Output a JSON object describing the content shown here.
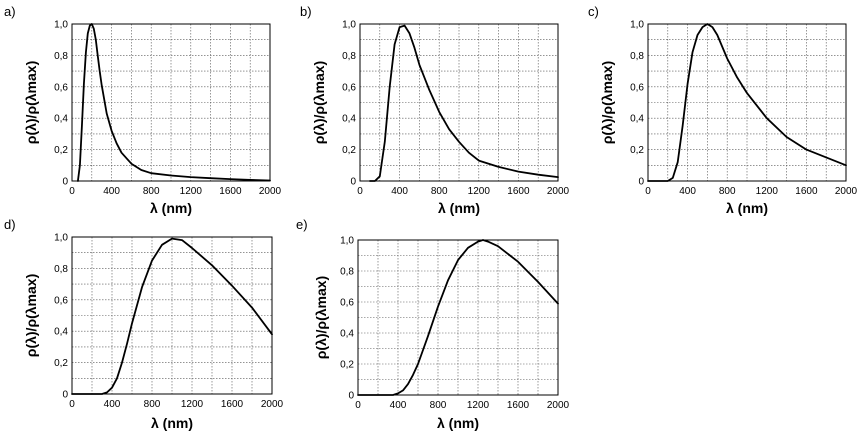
{
  "chart_data": [
    {
      "type": "line",
      "panel_label": "a)",
      "xlabel": "λ (nm)",
      "ylabel": "ρ(λ)/ρ(λmax)",
      "xlim": [
        0,
        2000
      ],
      "ylim": [
        0,
        1.0
      ],
      "x_ticks": [
        "0",
        "400",
        "800",
        "1200",
        "1600",
        "2000"
      ],
      "y_ticks": [
        "0",
        "0,2",
        "0,4",
        "0,6",
        "0,8",
        "1,0"
      ],
      "grid": true,
      "x": [
        60,
        80,
        100,
        120,
        140,
        160,
        180,
        200,
        220,
        240,
        260,
        280,
        300,
        350,
        400,
        450,
        500,
        600,
        700,
        800,
        1000,
        1200,
        1400,
        1600,
        1800,
        2000
      ],
      "values": [
        0.0,
        0.1,
        0.35,
        0.62,
        0.82,
        0.94,
        0.99,
        1.0,
        0.97,
        0.9,
        0.8,
        0.7,
        0.61,
        0.43,
        0.32,
        0.24,
        0.18,
        0.11,
        0.07,
        0.05,
        0.035,
        0.025,
        0.018,
        0.012,
        0.007,
        0.003
      ]
    },
    {
      "type": "line",
      "panel_label": "b)",
      "xlabel": "λ (nm)",
      "ylabel": "ρ(λ)/ρ(λmax)",
      "xlim": [
        0,
        2000
      ],
      "ylim": [
        0,
        1.0
      ],
      "x_ticks": [
        "0",
        "400",
        "800",
        "1200",
        "1600",
        "2000"
      ],
      "y_ticks": [
        "0",
        "0,2",
        "0,4",
        "0,6",
        "0,8",
        "1,0"
      ],
      "grid": true,
      "x": [
        100,
        150,
        200,
        250,
        300,
        350,
        400,
        450,
        500,
        550,
        600,
        700,
        800,
        900,
        1000,
        1100,
        1200,
        1400,
        1600,
        1800,
        2000
      ],
      "values": [
        0.0,
        0.0,
        0.03,
        0.25,
        0.6,
        0.87,
        0.98,
        0.99,
        0.94,
        0.85,
        0.74,
        0.58,
        0.44,
        0.33,
        0.25,
        0.18,
        0.13,
        0.09,
        0.06,
        0.04,
        0.025
      ]
    },
    {
      "type": "line",
      "panel_label": "c)",
      "xlabel": "λ (nm)",
      "ylabel": "ρ(λ)/ρ(λmax)",
      "xlim": [
        0,
        2000
      ],
      "ylim": [
        0,
        1.0
      ],
      "x_ticks": [
        "0",
        "400",
        "800",
        "1200",
        "1600",
        "2000"
      ],
      "y_ticks": [
        "0",
        "0,2",
        "0,4",
        "0,6",
        "0,8",
        "1,0"
      ],
      "grid": true,
      "x": [
        0,
        200,
        250,
        300,
        350,
        400,
        450,
        500,
        550,
        600,
        650,
        700,
        800,
        900,
        1000,
        1200,
        1400,
        1600,
        1800,
        2000
      ],
      "values": [
        0.0,
        0.0,
        0.02,
        0.12,
        0.35,
        0.62,
        0.82,
        0.93,
        0.98,
        1.0,
        0.98,
        0.93,
        0.78,
        0.66,
        0.56,
        0.4,
        0.28,
        0.2,
        0.15,
        0.1
      ]
    },
    {
      "type": "line",
      "panel_label": "d)",
      "xlabel": "λ (nm)",
      "ylabel": "ρ(λ)/ρ(λmax)",
      "xlim": [
        0,
        2000
      ],
      "ylim": [
        0,
        1.0
      ],
      "x_ticks": [
        "0",
        "400",
        "800",
        "1200",
        "1600",
        "2000"
      ],
      "y_ticks": [
        "0",
        "0,2",
        "0,4",
        "0,6",
        "0,8",
        "1,0"
      ],
      "grid": true,
      "x": [
        0,
        300,
        350,
        400,
        450,
        500,
        550,
        600,
        700,
        800,
        900,
        1000,
        1100,
        1200,
        1400,
        1600,
        1800,
        2000
      ],
      "values": [
        0.0,
        0.0,
        0.01,
        0.04,
        0.1,
        0.2,
        0.32,
        0.45,
        0.68,
        0.85,
        0.95,
        0.99,
        0.98,
        0.93,
        0.82,
        0.69,
        0.55,
        0.38
      ]
    },
    {
      "type": "line",
      "panel_label": "e)",
      "xlabel": "λ (nm)",
      "ylabel": "ρ(λ)/ρ(λmax)",
      "xlim": [
        0,
        2000
      ],
      "ylim": [
        0,
        1.0
      ],
      "x_ticks": [
        "0",
        "400",
        "800",
        "1200",
        "1600",
        "2000"
      ],
      "y_ticks": [
        "0",
        "0,2",
        "0,4",
        "0,6",
        "0,8",
        "1,0"
      ],
      "grid": true,
      "x": [
        0,
        350,
        400,
        450,
        500,
        550,
        600,
        700,
        800,
        900,
        1000,
        1100,
        1200,
        1250,
        1300,
        1400,
        1600,
        1800,
        2000
      ],
      "values": [
        0.0,
        0.0,
        0.01,
        0.03,
        0.07,
        0.13,
        0.2,
        0.38,
        0.57,
        0.74,
        0.87,
        0.95,
        0.99,
        1.0,
        0.99,
        0.96,
        0.86,
        0.73,
        0.59
      ]
    }
  ]
}
